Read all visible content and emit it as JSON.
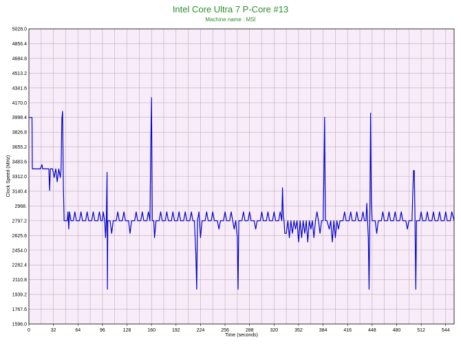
{
  "chart_data": {
    "type": "line",
    "title": "Intel Core Ultra 7 P-Core #13",
    "subtitle": "Machine name : MSI",
    "xlabel": "Time (seconds)",
    "ylabel": "Clock Speed (MHz)",
    "xlim": [
      0,
      555
    ],
    "ylim": [
      1596.0,
      5028.0
    ],
    "x_ticks": [
      0,
      32,
      64,
      96,
      128,
      160,
      192,
      224,
      256,
      288,
      320,
      352,
      384,
      416,
      448,
      480,
      512,
      544
    ],
    "y_ticks": [
      1596.0,
      1767.6,
      1939.2,
      2110.8,
      2282.4,
      2454.0,
      2625.6,
      2797.2,
      2968.8,
      3140.4,
      3312.0,
      3483.6,
      3655.2,
      3826.8,
      3998.4,
      4170.0,
      4341.6,
      4513.2,
      4684.8,
      4856.4,
      5028.0
    ],
    "y_tick_labels": [
      "1596.0",
      "1767.6",
      "1939.2",
      "2110.8",
      "2282.4",
      "2454.0",
      "2625.6",
      "2797.2",
      "2968.",
      "3140.4",
      "3312.0",
      "3483.6",
      "3655.2",
      "3826.8",
      "3998.4",
      "4170.0",
      "4341.6",
      "4513.2",
      "4684.8",
      "4856.4",
      "5028.0"
    ],
    "grid": true,
    "colors": {
      "plot_bg": "#f8ecf8",
      "grid": "#c0a8c0",
      "line": "#0000c8",
      "title": "#2e8b2e"
    },
    "series": [
      {
        "values": [
          [
            0,
            3998
          ],
          [
            4,
            3998
          ],
          [
            4.5,
            3400
          ],
          [
            15,
            3400
          ],
          [
            17,
            3450
          ],
          [
            18,
            3400
          ],
          [
            26,
            3400
          ],
          [
            27,
            3150
          ],
          [
            28,
            3400
          ],
          [
            31,
            3400
          ],
          [
            33,
            3300
          ],
          [
            35,
            3400
          ],
          [
            37,
            3250
          ],
          [
            39,
            3400
          ],
          [
            41,
            3300
          ],
          [
            42,
            3400
          ],
          [
            43,
            3980
          ],
          [
            44,
            4070
          ],
          [
            45,
            3200
          ],
          [
            46,
            2797
          ],
          [
            50,
            2797
          ],
          [
            51,
            2900
          ],
          [
            52,
            2700
          ],
          [
            53,
            2900
          ],
          [
            55,
            2797
          ],
          [
            58,
            2797
          ],
          [
            60,
            2900
          ],
          [
            62,
            2797
          ],
          [
            66,
            2797
          ],
          [
            68,
            2900
          ],
          [
            70,
            2797
          ],
          [
            74,
            2797
          ],
          [
            76,
            2900
          ],
          [
            78,
            2797
          ],
          [
            82,
            2797
          ],
          [
            84,
            2900
          ],
          [
            86,
            2797
          ],
          [
            90,
            2797
          ],
          [
            92,
            2900
          ],
          [
            94,
            2797
          ],
          [
            96,
            2797
          ],
          [
            97,
            2900
          ],
          [
            99,
            2797
          ],
          [
            100,
            2600
          ],
          [
            101,
            2797
          ],
          [
            102,
            3360
          ],
          [
            102.5,
            2000
          ],
          [
            103,
            2797
          ],
          [
            106,
            2797
          ],
          [
            108,
            2650
          ],
          [
            110,
            2797
          ],
          [
            114,
            2797
          ],
          [
            116,
            2900
          ],
          [
            118,
            2797
          ],
          [
            122,
            2797
          ],
          [
            124,
            2900
          ],
          [
            126,
            2797
          ],
          [
            130,
            2797
          ],
          [
            132,
            2650
          ],
          [
            134,
            2797
          ],
          [
            138,
            2797
          ],
          [
            140,
            2900
          ],
          [
            142,
            2797
          ],
          [
            146,
            2797
          ],
          [
            148,
            2900
          ],
          [
            150,
            2797
          ],
          [
            154,
            2797
          ],
          [
            156,
            2900
          ],
          [
            158,
            2797
          ],
          [
            159,
            3600
          ],
          [
            160,
            4230
          ],
          [
            161,
            2797
          ],
          [
            163,
            2797
          ],
          [
            164,
            2600
          ],
          [
            166,
            2797
          ],
          [
            170,
            2797
          ],
          [
            172,
            2900
          ],
          [
            174,
            2797
          ],
          [
            178,
            2797
          ],
          [
            180,
            2900
          ],
          [
            182,
            2797
          ],
          [
            186,
            2797
          ],
          [
            188,
            2900
          ],
          [
            190,
            2797
          ],
          [
            194,
            2797
          ],
          [
            196,
            2900
          ],
          [
            198,
            2797
          ],
          [
            202,
            2797
          ],
          [
            204,
            2900
          ],
          [
            206,
            2797
          ],
          [
            210,
            2797
          ],
          [
            212,
            2900
          ],
          [
            214,
            2797
          ],
          [
            216,
            2797
          ],
          [
            218,
            2400
          ],
          [
            219,
            2000
          ],
          [
            220,
            2797
          ],
          [
            222,
            2900
          ],
          [
            224,
            2600
          ],
          [
            226,
            2797
          ],
          [
            230,
            2797
          ],
          [
            232,
            2900
          ],
          [
            234,
            2797
          ],
          [
            238,
            2797
          ],
          [
            240,
            2900
          ],
          [
            242,
            2797
          ],
          [
            246,
            2797
          ],
          [
            248,
            2700
          ],
          [
            250,
            2797
          ],
          [
            254,
            2797
          ],
          [
            256,
            2900
          ],
          [
            258,
            2797
          ],
          [
            262,
            2797
          ],
          [
            264,
            2900
          ],
          [
            266,
            2797
          ],
          [
            268,
            2700
          ],
          [
            270,
            2797
          ],
          [
            272,
            2600
          ],
          [
            273,
            2000
          ],
          [
            274,
            2797
          ],
          [
            278,
            2797
          ],
          [
            280,
            2900
          ],
          [
            282,
            2797
          ],
          [
            286,
            2797
          ],
          [
            288,
            2900
          ],
          [
            290,
            2797
          ],
          [
            294,
            2797
          ],
          [
            296,
            2700
          ],
          [
            298,
            2797
          ],
          [
            302,
            2797
          ],
          [
            304,
            2900
          ],
          [
            306,
            2797
          ],
          [
            310,
            2797
          ],
          [
            312,
            2900
          ],
          [
            314,
            2797
          ],
          [
            318,
            2797
          ],
          [
            320,
            2900
          ],
          [
            322,
            2797
          ],
          [
            326,
            2797
          ],
          [
            328,
            2900
          ],
          [
            330,
            2797
          ],
          [
            331,
            3180
          ],
          [
            332,
            2850
          ],
          [
            333,
            2797
          ],
          [
            334,
            2650
          ],
          [
            336,
            2650
          ],
          [
            338,
            2797
          ],
          [
            340,
            2600
          ],
          [
            342,
            2797
          ],
          [
            344,
            2650
          ],
          [
            346,
            2797
          ],
          [
            348,
            2700
          ],
          [
            350,
            2797
          ],
          [
            352,
            2550
          ],
          [
            354,
            2797
          ],
          [
            356,
            2600
          ],
          [
            358,
            2797
          ],
          [
            360,
            2650
          ],
          [
            362,
            2797
          ],
          [
            364,
            2550
          ],
          [
            366,
            2797
          ],
          [
            368,
            2700
          ],
          [
            370,
            2797
          ],
          [
            372,
            2600
          ],
          [
            374,
            2797
          ],
          [
            376,
            2900
          ],
          [
            378,
            2797
          ],
          [
            380,
            2650
          ],
          [
            382,
            2797
          ],
          [
            384,
            2797
          ],
          [
            385,
            3300
          ],
          [
            386,
            4000
          ],
          [
            387,
            2800
          ],
          [
            389,
            2797
          ],
          [
            392,
            2700
          ],
          [
            394,
            2797
          ],
          [
            396,
            2550
          ],
          [
            398,
            2797
          ],
          [
            400,
            2600
          ],
          [
            402,
            2797
          ],
          [
            404,
            2700
          ],
          [
            406,
            2797
          ],
          [
            410,
            2797
          ],
          [
            412,
            2900
          ],
          [
            414,
            2797
          ],
          [
            418,
            2797
          ],
          [
            420,
            2900
          ],
          [
            422,
            2797
          ],
          [
            426,
            2797
          ],
          [
            428,
            2900
          ],
          [
            430,
            2797
          ],
          [
            434,
            2797
          ],
          [
            436,
            2900
          ],
          [
            438,
            2797
          ],
          [
            440,
            2797
          ],
          [
            441,
            3000
          ],
          [
            442,
            2797
          ],
          [
            443,
            2600
          ],
          [
            444,
            2000
          ],
          [
            445,
            2797
          ],
          [
            446,
            4050
          ],
          [
            447,
            3000
          ],
          [
            448,
            2797
          ],
          [
            452,
            2797
          ],
          [
            454,
            2650
          ],
          [
            456,
            2797
          ],
          [
            460,
            2797
          ],
          [
            462,
            2900
          ],
          [
            464,
            2797
          ],
          [
            468,
            2797
          ],
          [
            470,
            2900
          ],
          [
            472,
            2797
          ],
          [
            476,
            2797
          ],
          [
            478,
            2900
          ],
          [
            480,
            2797
          ],
          [
            484,
            2797
          ],
          [
            486,
            2900
          ],
          [
            488,
            2797
          ],
          [
            492,
            2797
          ],
          [
            494,
            2700
          ],
          [
            496,
            2797
          ],
          [
            500,
            2797
          ],
          [
            501,
            3100
          ],
          [
            502,
            3380
          ],
          [
            503,
            3380
          ],
          [
            504,
            2797
          ],
          [
            505,
            2000
          ],
          [
            506,
            2797
          ],
          [
            510,
            2797
          ],
          [
            512,
            2900
          ],
          [
            514,
            2797
          ],
          [
            518,
            2797
          ],
          [
            520,
            2900
          ],
          [
            522,
            2797
          ],
          [
            526,
            2797
          ],
          [
            528,
            2900
          ],
          [
            530,
            2797
          ],
          [
            534,
            2797
          ],
          [
            536,
            2900
          ],
          [
            538,
            2797
          ],
          [
            542,
            2797
          ],
          [
            544,
            2900
          ],
          [
            546,
            2797
          ],
          [
            550,
            2797
          ],
          [
            552,
            2900
          ],
          [
            555,
            2797
          ]
        ]
      }
    ]
  }
}
